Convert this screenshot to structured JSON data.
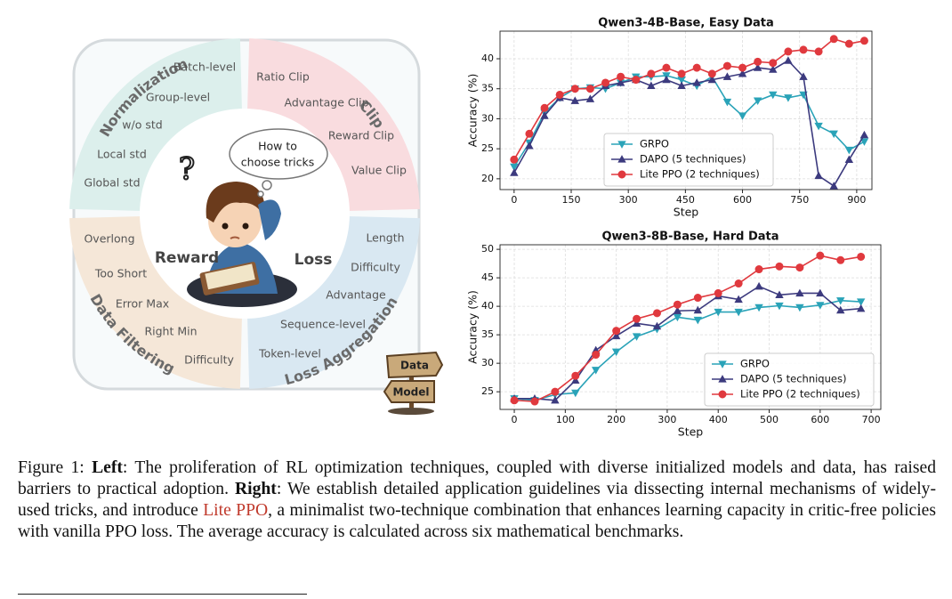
{
  "diagram": {
    "groups": [
      {
        "name": "Normalization",
        "items": [
          "Batch-level",
          "Group-level",
          "w/o std",
          "Local std",
          "Global std"
        ]
      },
      {
        "name": "Clip",
        "items": [
          "Ratio Clip",
          "Advantage Clip",
          "Reward Clip",
          "Value Clip"
        ]
      },
      {
        "name": "Loss Aggregation",
        "items": [
          "Length",
          "Difficulty",
          "Advantage",
          "Sequence-level",
          "Token-level"
        ]
      },
      {
        "name": "Data Filtering",
        "items": [
          "Overlong",
          "Too Short",
          "Error Max",
          "Right Min",
          "Difficulty"
        ]
      }
    ],
    "reward": "Reward",
    "loss": "Loss",
    "bubble": [
      "How to",
      "choose tricks"
    ],
    "question_mark": "?",
    "sign": [
      "Data",
      "Model"
    ]
  },
  "chart_data": [
    {
      "type": "line",
      "title": "Qwen3-4B-Base, Easy Data",
      "x_label": "Step",
      "y_label": "Accuracy (%)",
      "x": [
        0,
        40,
        80,
        120,
        160,
        200,
        240,
        280,
        320,
        360,
        400,
        440,
        480,
        520,
        560,
        600,
        640,
        680,
        720,
        760,
        800,
        840,
        880,
        920
      ],
      "series": [
        {
          "name": "GRPO",
          "color": "#2aa3b8",
          "marker": "v",
          "values": [
            22.0,
            26.0,
            31.0,
            33.5,
            35.0,
            35.2,
            35.0,
            36.0,
            37.0,
            37.0,
            37.2,
            36.5,
            35.5,
            37.0,
            32.8,
            30.5,
            33.0,
            34.0,
            33.5,
            34.0,
            28.8,
            27.5,
            24.8,
            26.2
          ]
        },
        {
          "name": "DAPO (5 techniques)",
          "color": "#3c3a7e",
          "marker": "^",
          "values": [
            21.0,
            25.5,
            30.5,
            33.5,
            33.0,
            33.3,
            35.5,
            36.0,
            36.5,
            35.5,
            36.5,
            35.5,
            36.0,
            36.5,
            37.0,
            37.5,
            38.5,
            38.2,
            39.7,
            37.0,
            20.5,
            18.8,
            23.2,
            27.3
          ]
        },
        {
          "name": "Lite PPO (2 techniques)",
          "color": "#e0393e",
          "marker": "o",
          "values": [
            23.2,
            27.5,
            31.8,
            34.0,
            35.0,
            35.0,
            36.0,
            37.0,
            36.5,
            37.5,
            38.5,
            37.5,
            38.5,
            37.5,
            38.8,
            38.5,
            39.5,
            39.3,
            41.2,
            41.5,
            41.2,
            43.3,
            42.5,
            43.0
          ]
        }
      ],
      "xlim": [
        -37,
        940
      ],
      "ylim": [
        18.2,
        44.6
      ],
      "xticks": [
        0,
        150,
        300,
        450,
        600,
        750,
        900
      ],
      "yticks": [
        20,
        25,
        30,
        35,
        40
      ],
      "grid": true,
      "legend": "lower center"
    },
    {
      "type": "line",
      "title": "Qwen3-8B-Base, Hard Data",
      "x_label": "Step",
      "y_label": "Accuracy (%)",
      "x": [
        0,
        40,
        80,
        120,
        160,
        200,
        240,
        280,
        320,
        360,
        400,
        440,
        480,
        520,
        560,
        600,
        640,
        680
      ],
      "series": [
        {
          "name": "GRPO",
          "color": "#2aa3b8",
          "marker": "v",
          "values": [
            23.8,
            23.5,
            24.5,
            24.8,
            28.8,
            32.0,
            34.7,
            36.0,
            38.1,
            37.6,
            39.0,
            39.0,
            39.8,
            40.1,
            39.8,
            40.2,
            41.0,
            40.8
          ]
        },
        {
          "name": "DAPO (5 techniques)",
          "color": "#3c3a7e",
          "marker": "^",
          "values": [
            23.8,
            23.8,
            23.5,
            27.0,
            32.3,
            34.8,
            37.0,
            36.5,
            39.2,
            39.3,
            41.8,
            41.2,
            43.5,
            42.0,
            42.3,
            42.3,
            39.3,
            39.6
          ]
        },
        {
          "name": "Lite PPO (2 techniques)",
          "color": "#e0393e",
          "marker": "o",
          "values": [
            23.5,
            23.3,
            25.0,
            27.8,
            31.5,
            35.7,
            37.8,
            38.8,
            40.3,
            41.5,
            42.3,
            44.0,
            46.5,
            47.0,
            46.8,
            48.9,
            48.1,
            48.7
          ]
        }
      ],
      "xlim": [
        -28,
        719
      ],
      "ylim": [
        21.9,
        50.8
      ],
      "xticks": [
        0,
        100,
        200,
        300,
        400,
        500,
        600,
        700
      ],
      "yticks": [
        25,
        30,
        35,
        40,
        45,
        50
      ],
      "grid": true,
      "legend": "lower right"
    }
  ],
  "caption": {
    "label": "Figure 1: ",
    "left": "Left",
    "left_text": ": The proliferation of RL optimization techniques, coupled with diverse initialized models and data, has raised barriers to practical adoption. ",
    "right": "Right",
    "right_text": ": We establish detailed application guidelines via dissecting internal mechanisms of widely-used tricks, and introduce ",
    "highlight": "Lite PPO",
    "end_text": ", a minimalist two-technique combination that enhances learning capacity in critic-free policies with vanilla PPO loss. The average accuracy is calculated across six mathematical benchmarks."
  }
}
